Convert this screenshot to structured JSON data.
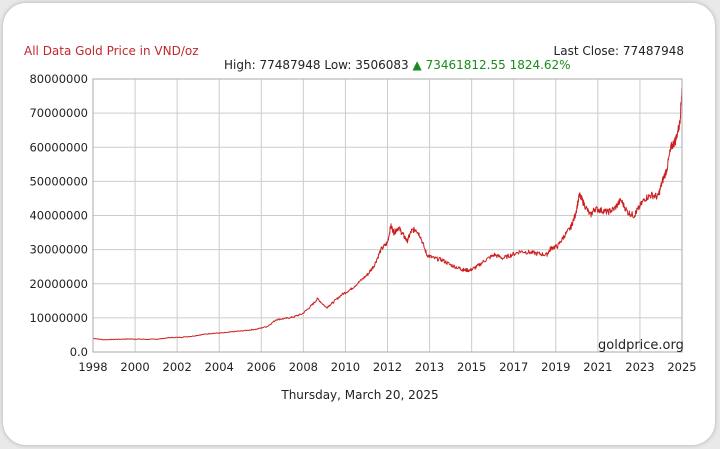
{
  "header": {
    "title": "All Data Gold Price in VND/oz",
    "last_close_label": "Last Close:",
    "last_close_value": "77487948",
    "high_label": "High:",
    "high_value": "77487948",
    "low_label": "Low:",
    "low_value": "3506083",
    "change_arrow": "▲",
    "change_value": "73461812.55",
    "change_pct": "1824.62%"
  },
  "footer": {
    "date": "Thursday, March 20, 2025",
    "brand": "goldprice.org"
  },
  "colors": {
    "line": "#cc1f1f",
    "title": "#c0282d",
    "change": "#1a8a1a",
    "grid": "#cccccc"
  },
  "chart_data": {
    "type": "line",
    "title": "All Data Gold Price in VND/oz",
    "xlabel": "",
    "ylabel": "",
    "xlim": [
      1998,
      2025
    ],
    "ylim": [
      0,
      80000000
    ],
    "grid": true,
    "x_ticks": [
      "1998",
      "2000",
      "2002",
      "2004",
      "2006",
      "2008",
      "2010",
      "2012",
      "2013",
      "2015",
      "2017",
      "2019",
      "2021",
      "2023",
      "2025"
    ],
    "y_ticks": [
      "0.0",
      "10000000",
      "20000000",
      "30000000",
      "40000000",
      "50000000",
      "60000000",
      "70000000",
      "80000000"
    ],
    "series": [
      {
        "x": [
          1998.0,
          1998.5,
          1999.0,
          1999.5,
          2000.0,
          2000.5,
          2001.0,
          2001.5,
          2002.0,
          2002.5,
          2003.0,
          2003.5,
          2004.0,
          2004.5,
          2005.0,
          2005.5,
          2006.0,
          2006.4,
          2006.8,
          2007.2,
          2007.6,
          2008.0,
          2008.3,
          2008.7,
          2009.0,
          2009.4,
          2009.8,
          2010.2,
          2010.6,
          2010.9,
          2011.2,
          2011.5,
          2011.65,
          2011.8,
          2012.0,
          2012.2,
          2012.4,
          2012.6,
          2012.8,
          2013.0,
          2013.3,
          2013.6,
          2014.0,
          2014.4,
          2014.8,
          2015.0,
          2015.3,
          2015.6,
          2016.0,
          2016.4,
          2016.8,
          2017.2,
          2017.6,
          2018.0,
          2018.4,
          2018.8,
          2019.0,
          2019.3,
          2019.6,
          2019.9,
          2020.1,
          2020.3,
          2020.5,
          2020.8,
          2021.0,
          2021.3,
          2021.6,
          2021.9,
          2022.2,
          2022.5,
          2022.8,
          2023.0,
          2023.3,
          2023.6,
          2023.9,
          2024.1,
          2024.3,
          2024.5,
          2024.7,
          2024.9,
          2025.0
        ],
        "y": [
          4000000,
          3600000,
          3700000,
          3800000,
          3800000,
          3700000,
          3800000,
          4200000,
          4300000,
          4600000,
          5100000,
          5500000,
          5600000,
          6000000,
          6300000,
          6700000,
          7500000,
          9500000,
          9800000,
          10300000,
          11200000,
          13500000,
          15600000,
          13000000,
          14500000,
          16800000,
          18300000,
          20500000,
          22800000,
          25500000,
          30000000,
          32000000,
          37000000,
          35000000,
          36500000,
          34500000,
          32500000,
          35500000,
          36000000,
          34000000,
          28500000,
          27500000,
          27000000,
          25500000,
          24500000,
          24000000,
          24000000,
          25000000,
          27000000,
          28500000,
          27500000,
          28500000,
          29500000,
          29200000,
          28800000,
          28500000,
          30500000,
          31000000,
          34000000,
          36500000,
          40000000,
          46000000,
          43500000,
          40000000,
          42000000,
          41500000,
          41000000,
          42000000,
          44500000,
          41000000,
          40000000,
          42000000,
          45000000,
          46000000,
          45500000,
          50000000,
          53500000,
          60000000,
          62000000,
          67000000,
          77500000
        ]
      }
    ]
  }
}
